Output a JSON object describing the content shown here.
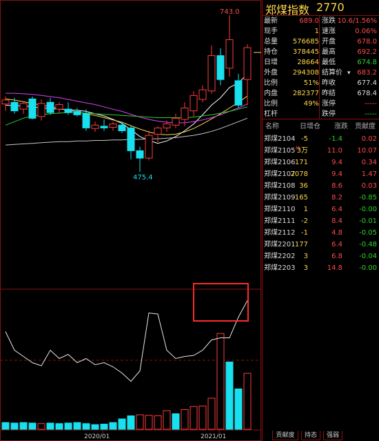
{
  "header": {
    "name": "郑煤指数",
    "code": "2770"
  },
  "quote": [
    {
      "l1": "最新",
      "v1": "689.0",
      "c1": "#ff4b4b",
      "l2": "涨跌",
      "v2": "10.6/1.56%",
      "c2": "#ff4b4b"
    },
    {
      "l1": "现手",
      "v1": "1",
      "c1": "#ffd84a",
      "l2": "速涨",
      "v2": "0.06%",
      "c2": "#ff4b4b"
    },
    {
      "l1": "总量",
      "v1": "576685",
      "c1": "#ffd84a",
      "l2": "开盘",
      "v2": "678.0",
      "c2": "#ff4b4b"
    },
    {
      "l1": "持仓",
      "v1": "378445",
      "c1": "#ffd84a",
      "l2": "最高",
      "v2": "692.2",
      "c2": "#ff4b4b"
    },
    {
      "l1": "日增",
      "v1": "28664",
      "c1": "#ffd84a",
      "l2": "最低",
      "v2": "674.8",
      "c2": "#2fd02f"
    },
    {
      "l1": "外盘",
      "v1": "294308",
      "c1": "#ffd84a",
      "l2": "结算价",
      "v2": "683.2",
      "c2": "#ff4b4b"
    },
    {
      "l1": "比例",
      "v1": "51%",
      "c1": "#ffd84a",
      "l2": "昨收",
      "v2": "677.4",
      "c2": "#dddddd"
    },
    {
      "l1": "内盘",
      "v1": "282377",
      "c1": "#ffd84a",
      "l2": "昨结",
      "v2": "678.4",
      "c2": "#dddddd"
    },
    {
      "l1": "比例",
      "v1": "49%",
      "c1": "#ffd84a",
      "l2": "涨停",
      "v2": "-----",
      "c2": "#ff4b4b"
    },
    {
      "l1": "杠杆",
      "v1": "",
      "c1": "#ffd84a",
      "l2": "跌停",
      "v2": "-----",
      "c2": "#2fd02f"
    }
  ],
  "contracts_header": {
    "name": "名称",
    "inc": "日增仓",
    "chg": "涨跌",
    "con": "贡献度"
  },
  "contracts": [
    {
      "name": "郑煤2104",
      "inc": "-5",
      "chg": "-1.4",
      "con": "0.02",
      "chg_color": "#2fd02f",
      "con_color": "#ff4b4b"
    },
    {
      "name": "郑煤2105",
      "mark": "M",
      "inc": "3万",
      "chg": "11.0",
      "con": "10.07",
      "chg_color": "#ff4b4b",
      "con_color": "#ff4b4b"
    },
    {
      "name": "郑煤2106",
      "inc": "171",
      "chg": "9.4",
      "con": "0.34",
      "chg_color": "#ff4b4b",
      "con_color": "#ff4b4b"
    },
    {
      "name": "郑煤2107",
      "inc": "2078",
      "chg": "9.4",
      "con": "1.47",
      "chg_color": "#ff4b4b",
      "con_color": "#ff4b4b"
    },
    {
      "name": "郑煤2108",
      "inc": "36",
      "chg": "8.6",
      "con": "0.03",
      "chg_color": "#ff4b4b",
      "con_color": "#ff4b4b"
    },
    {
      "name": "郑煤2109",
      "inc": "165",
      "chg": "8.2",
      "con": "-0.85",
      "chg_color": "#ff4b4b",
      "con_color": "#2fd02f"
    },
    {
      "name": "郑煤2110",
      "inc": "1",
      "chg": "6.4",
      "con": "-0.00",
      "chg_color": "#ff4b4b",
      "con_color": "#2fd02f"
    },
    {
      "name": "郑煤2111",
      "inc": "-2",
      "chg": "8.4",
      "con": "-0.01",
      "chg_color": "#ff4b4b",
      "con_color": "#2fd02f"
    },
    {
      "name": "郑煤2112",
      "inc": "-1",
      "chg": "4.8",
      "con": "-0.05",
      "chg_color": "#ff4b4b",
      "con_color": "#2fd02f"
    },
    {
      "name": "郑煤2201",
      "inc": "177",
      "chg": "6.4",
      "con": "-0.48",
      "chg_color": "#ff4b4b",
      "con_color": "#2fd02f"
    },
    {
      "name": "郑煤2202",
      "inc": "3",
      "chg": "6.8",
      "con": "-0.04",
      "chg_color": "#ff4b4b",
      "con_color": "#2fd02f"
    },
    {
      "name": "郑煤2203",
      "inc": "3",
      "chg": "14.8",
      "con": "-0.00",
      "chg_color": "#ff4b4b",
      "con_color": "#2fd02f"
    }
  ],
  "bottom_tabs": [
    "贡献度",
    "持态",
    "强弱"
  ],
  "chart_data": {
    "type": "candlestick",
    "price_annotations": {
      "high": "743.0",
      "low": "475.4"
    },
    "x_ticks": [
      "2020/01",
      "2021/01"
    ],
    "colors": {
      "up": "#ff3b3b",
      "down": "#18e0ee",
      "ma1": "#ffffff",
      "ma2": "#ffd84a",
      "ma3": "#e040fb",
      "ma4": "#2fd02f",
      "ma5": "#c8c8c8"
    },
    "candles": [
      {
        "o": 587,
        "h": 600,
        "l": 575,
        "c": 594
      },
      {
        "o": 590,
        "h": 598,
        "l": 570,
        "c": 575
      },
      {
        "o": 578,
        "h": 592,
        "l": 570,
        "c": 588
      },
      {
        "o": 596,
        "h": 600,
        "l": 560,
        "c": 562
      },
      {
        "o": 565,
        "h": 595,
        "l": 558,
        "c": 588
      },
      {
        "o": 590,
        "h": 598,
        "l": 568,
        "c": 572
      },
      {
        "o": 578,
        "h": 590,
        "l": 570,
        "c": 586
      },
      {
        "o": 578,
        "h": 590,
        "l": 568,
        "c": 572
      },
      {
        "o": 574,
        "h": 580,
        "l": 565,
        "c": 568
      },
      {
        "o": 570,
        "h": 578,
        "l": 540,
        "c": 545
      },
      {
        "o": 544,
        "h": 556,
        "l": 538,
        "c": 550
      },
      {
        "o": 548,
        "h": 560,
        "l": 540,
        "c": 545
      },
      {
        "o": 546,
        "h": 556,
        "l": 540,
        "c": 552
      },
      {
        "o": 550,
        "h": 556,
        "l": 536,
        "c": 540
      },
      {
        "o": 545,
        "h": 548,
        "l": 490,
        "c": 505
      },
      {
        "o": 505,
        "h": 512,
        "l": 475.4,
        "c": 492
      },
      {
        "o": 492,
        "h": 540,
        "l": 488,
        "c": 532
      },
      {
        "o": 534,
        "h": 548,
        "l": 520,
        "c": 545
      },
      {
        "o": 545,
        "h": 558,
        "l": 538,
        "c": 552
      },
      {
        "o": 550,
        "h": 570,
        "l": 545,
        "c": 562
      },
      {
        "o": 560,
        "h": 590,
        "l": 548,
        "c": 580
      },
      {
        "o": 575,
        "h": 610,
        "l": 565,
        "c": 602
      },
      {
        "o": 595,
        "h": 620,
        "l": 590,
        "c": 612
      },
      {
        "o": 610,
        "h": 690,
        "l": 605,
        "c": 672
      },
      {
        "o": 672,
        "h": 685,
        "l": 620,
        "c": 630
      },
      {
        "o": 650,
        "h": 743,
        "l": 635,
        "c": 700
      },
      {
        "o": 628,
        "h": 640,
        "l": 580,
        "c": 585
      },
      {
        "o": 630,
        "h": 692,
        "l": 585,
        "c": 686
      }
    ],
    "ma_lines": [
      {
        "name": "ma1",
        "values": [
          585,
          584,
          584,
          582,
          580,
          579,
          578,
          577,
          576,
          574,
          570,
          566,
          560,
          553,
          542,
          530,
          523,
          518,
          522,
          530,
          540,
          552,
          568,
          585,
          598,
          616,
          624,
          640
        ]
      },
      {
        "name": "ma2",
        "values": [
          596,
          594,
          591,
          588,
          585,
          582,
          579,
          576,
          573,
          570,
          567,
          563,
          559,
          555,
          549,
          543,
          538,
          534,
          533,
          534,
          538,
          544,
          552,
          561,
          570,
          580,
          590,
          601
        ]
      },
      {
        "name": "ma3",
        "values": [
          606,
          606,
          605,
          604,
          602,
          600,
          598,
          595,
          592,
          589,
          586,
          582,
          578,
          574,
          569,
          564,
          560,
          557,
          555,
          554,
          554,
          556,
          559,
          563,
          568,
          574,
          580,
          587
        ]
      },
      {
        "name": "ma4",
        "values": [
          550,
          556,
          562,
          566,
          568,
          570,
          571,
          572,
          572,
          571,
          570,
          569,
          568,
          567,
          566,
          565,
          564,
          563,
          563,
          563,
          563,
          564,
          566,
          568,
          571,
          574,
          578,
          582
        ]
      },
      {
        "name": "ma5",
        "values": [
          515,
          516,
          517,
          518,
          519,
          520,
          521,
          521,
          522,
          522,
          523,
          523,
          524,
          524,
          525,
          525,
          526,
          526,
          527,
          528,
          530,
          532,
          535,
          539,
          544,
          550,
          556,
          562
        ]
      }
    ],
    "indicator_line": [
      78,
      60,
      54,
      48,
      45,
      60,
      52,
      56,
      48,
      52,
      46,
      48,
      44,
      38,
      30,
      40,
      96,
      95,
      60,
      52,
      54,
      55,
      60,
      70,
      72,
      72,
      92,
      108
    ],
    "volume": [
      {
        "v": 13,
        "up": false
      },
      {
        "v": 12,
        "up": false
      },
      {
        "v": 13,
        "up": false
      },
      {
        "v": 12,
        "up": false
      },
      {
        "v": 11,
        "up": true
      },
      {
        "v": 12,
        "up": false
      },
      {
        "v": 11,
        "up": false
      },
      {
        "v": 12,
        "up": false
      },
      {
        "v": 13,
        "up": false
      },
      {
        "v": 11,
        "up": false
      },
      {
        "v": 9,
        "up": false
      },
      {
        "v": 10,
        "up": false
      },
      {
        "v": 13,
        "up": false
      },
      {
        "v": 20,
        "up": false
      },
      {
        "v": 26,
        "up": false
      },
      {
        "v": 28,
        "up": true
      },
      {
        "v": 27,
        "up": true
      },
      {
        "v": 26,
        "up": true
      },
      {
        "v": 36,
        "up": true
      },
      {
        "v": 30,
        "up": false
      },
      {
        "v": 38,
        "up": true
      },
      {
        "v": 44,
        "up": true
      },
      {
        "v": 45,
        "up": true
      },
      {
        "v": 60,
        "up": true
      },
      {
        "v": 185,
        "up": true
      },
      {
        "v": 130,
        "up": false
      },
      {
        "v": 78,
        "up": false
      },
      {
        "v": 108,
        "up": true
      }
    ]
  }
}
